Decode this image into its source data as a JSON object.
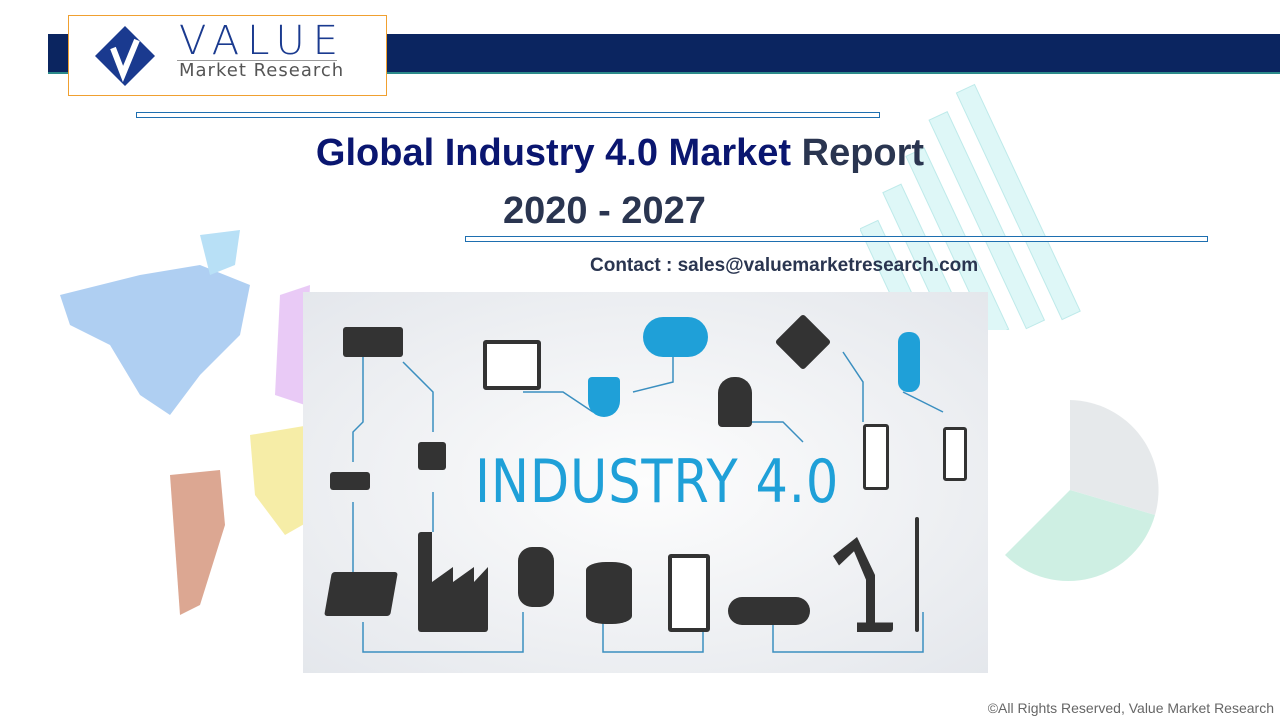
{
  "logo": {
    "word": "VALUE",
    "subtitle": "Market Research"
  },
  "title": {
    "main": "Global Industry 4.0 Market",
    "rest": "Report",
    "years": "2020 - 2027"
  },
  "contact": "Contact : sales@valuemarketresearch.com",
  "infographic": {
    "label": "INDUSTRY 4.0",
    "icons": [
      "drone-icon",
      "laptop-icon",
      "cloud-icon",
      "satellite-icon",
      "lightbulb-icon",
      "shield-icon",
      "worker-icon",
      "router-icon",
      "chip-icon",
      "smartphone-icon",
      "battery-icon",
      "solar-panel-icon",
      "factory-icon",
      "robot-icon",
      "database-icon",
      "3d-printer-icon",
      "conveyor-icon",
      "robot-arm-icon",
      "wind-turbine-icon"
    ]
  },
  "footer": "©All Rights Reserved, Value Market Research",
  "colors": {
    "band": "#0b2560",
    "title": "#0a1670",
    "accent": "#1fa0d8",
    "logo_border": "#f0a030"
  }
}
